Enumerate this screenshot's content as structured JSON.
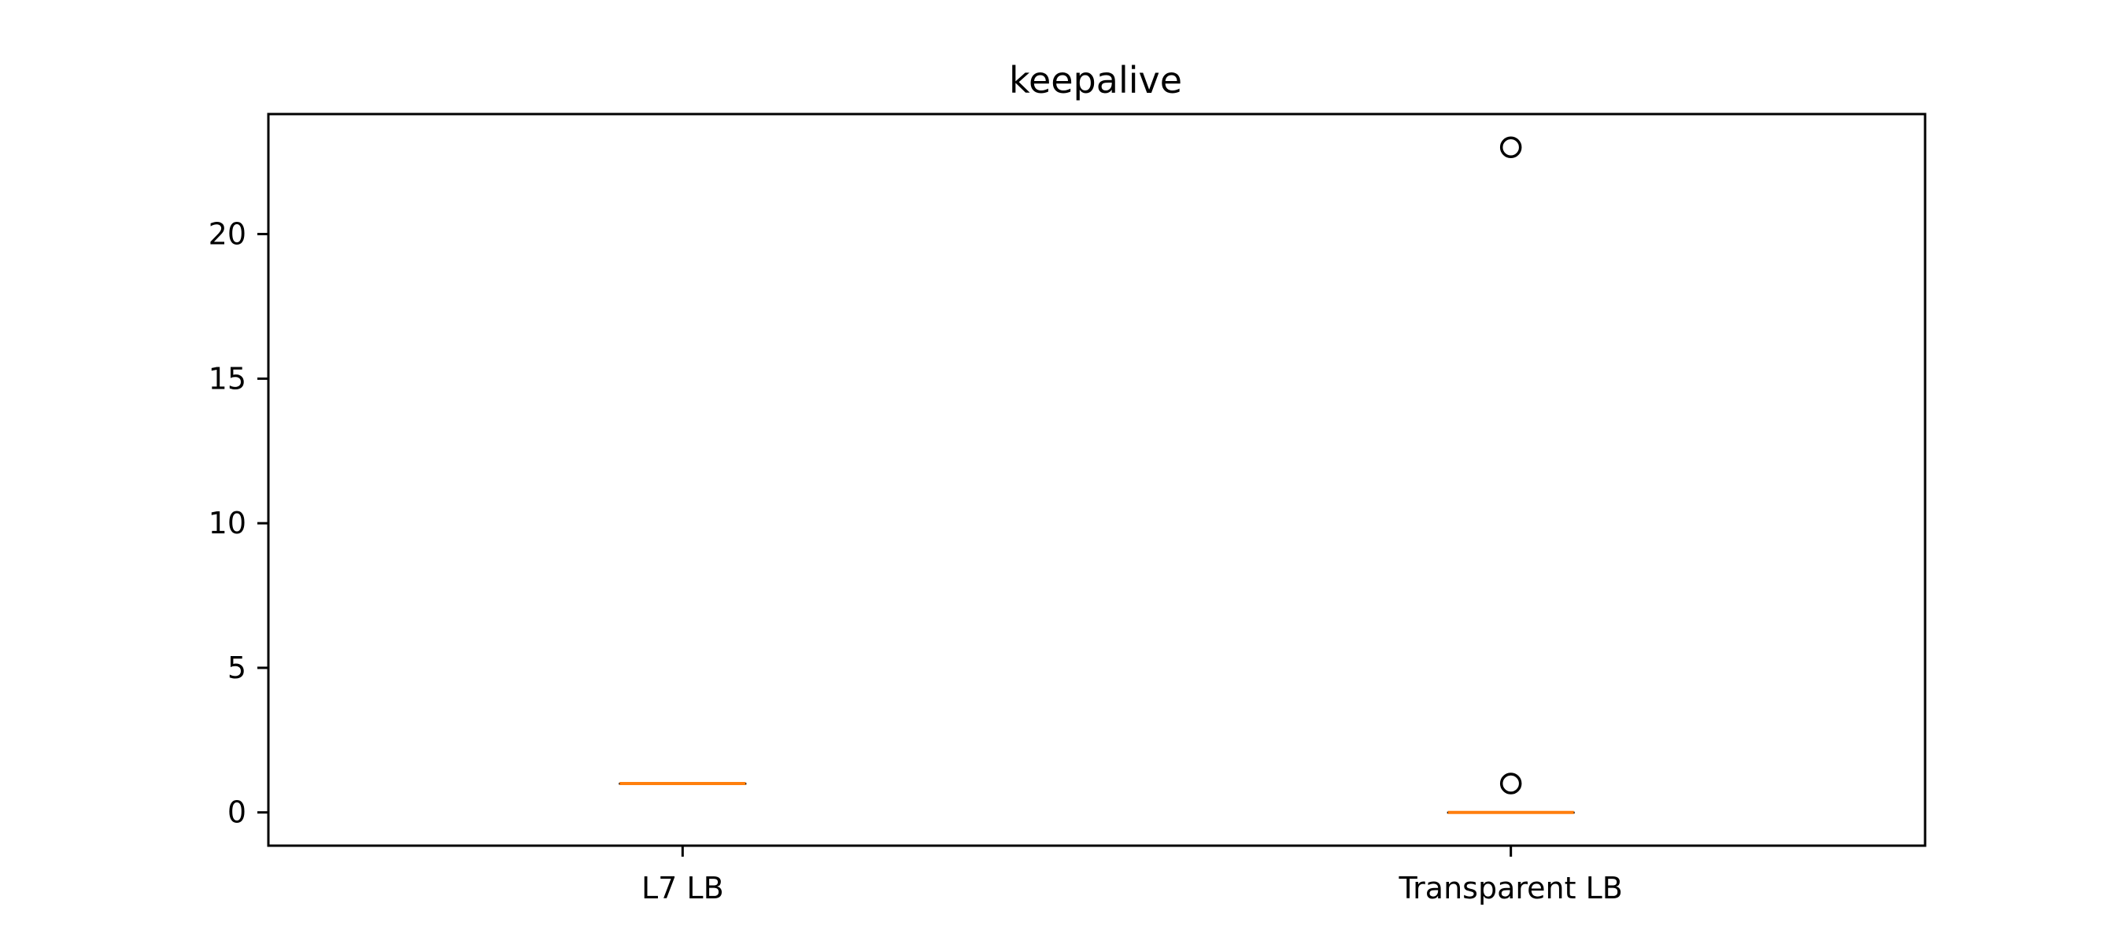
{
  "chart_data": {
    "type": "boxplot",
    "title": "keepalive",
    "xlabel": "",
    "ylabel": "",
    "categories": [
      "L7 LB",
      "Transparent LB"
    ],
    "boxes": [
      {
        "category": "L7 LB",
        "q1": 1,
        "median": 1,
        "q3": 1,
        "whisker_low": 1,
        "whisker_high": 1,
        "outliers": []
      },
      {
        "category": "Transparent LB",
        "q1": 0,
        "median": 0,
        "q3": 0,
        "whisker_low": 0,
        "whisker_high": 0,
        "outliers": [
          1,
          23
        ]
      }
    ],
    "ylim": [
      -1.15,
      24.15
    ],
    "yticks": [
      0,
      5,
      10,
      15,
      20
    ],
    "grid": false,
    "legend": "none",
    "colors": {
      "median": "#ff7f0e",
      "box": "#000000",
      "outlier": "#000000",
      "axis": "#000000"
    }
  }
}
